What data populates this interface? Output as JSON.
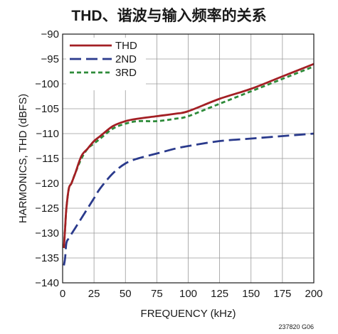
{
  "chart_data": {
    "type": "line",
    "title": "THD、谐波与输入频率的关系",
    "xlabel": "FREQUENCY (kHz)",
    "ylabel": "HARMONICS, THD (dBFS)",
    "xlim": [
      0,
      200
    ],
    "ylim": [
      -140,
      -90
    ],
    "x_ticks": [
      0,
      25,
      50,
      75,
      100,
      125,
      150,
      175,
      200
    ],
    "y_ticks": [
      -90,
      -95,
      -100,
      -105,
      -110,
      -115,
      -120,
      -125,
      -130,
      -135,
      -140
    ],
    "grid": true,
    "legend_position": "top-left",
    "figure_code": "237820 G06",
    "series": [
      {
        "name": "THD",
        "color": "#a31f24",
        "style": "solid",
        "x": [
          1,
          2,
          3,
          5,
          7,
          10,
          15,
          20,
          25,
          30,
          40,
          50,
          60,
          75,
          90,
          100,
          125,
          150,
          175,
          200
        ],
        "y": [
          -133,
          -129,
          -125,
          -121,
          -120,
          -118,
          -114.5,
          -113,
          -111.5,
          -110.5,
          -108.5,
          -107.5,
          -107,
          -106.5,
          -106,
          -105.5,
          -103,
          -101,
          -98.5,
          -96
        ]
      },
      {
        "name": "2ND",
        "color": "#2a3a8c",
        "style": "long-dash",
        "x": [
          1,
          2,
          3,
          5,
          10,
          15,
          20,
          25,
          30,
          40,
          50,
          60,
          75,
          90,
          100,
          125,
          150,
          175,
          200
        ],
        "y": [
          -136.5,
          -135,
          -132,
          -131,
          -129,
          -127,
          -125,
          -123,
          -121,
          -118,
          -116,
          -115,
          -114,
          -113,
          -112.5,
          -111.5,
          -111,
          -110.5,
          -110
        ]
      },
      {
        "name": "3RD",
        "color": "#2e8b3a",
        "style": "short-dash",
        "x": [
          1,
          2,
          3,
          5,
          7,
          10,
          15,
          20,
          25,
          30,
          40,
          50,
          60,
          75,
          90,
          100,
          125,
          150,
          175,
          200
        ],
        "y": [
          -133,
          -129,
          -125,
          -121,
          -120,
          -118,
          -115,
          -113,
          -112,
          -111,
          -109,
          -108,
          -107.5,
          -107.5,
          -107,
          -106.5,
          -104,
          -101.5,
          -99,
          -96.5
        ]
      }
    ]
  }
}
